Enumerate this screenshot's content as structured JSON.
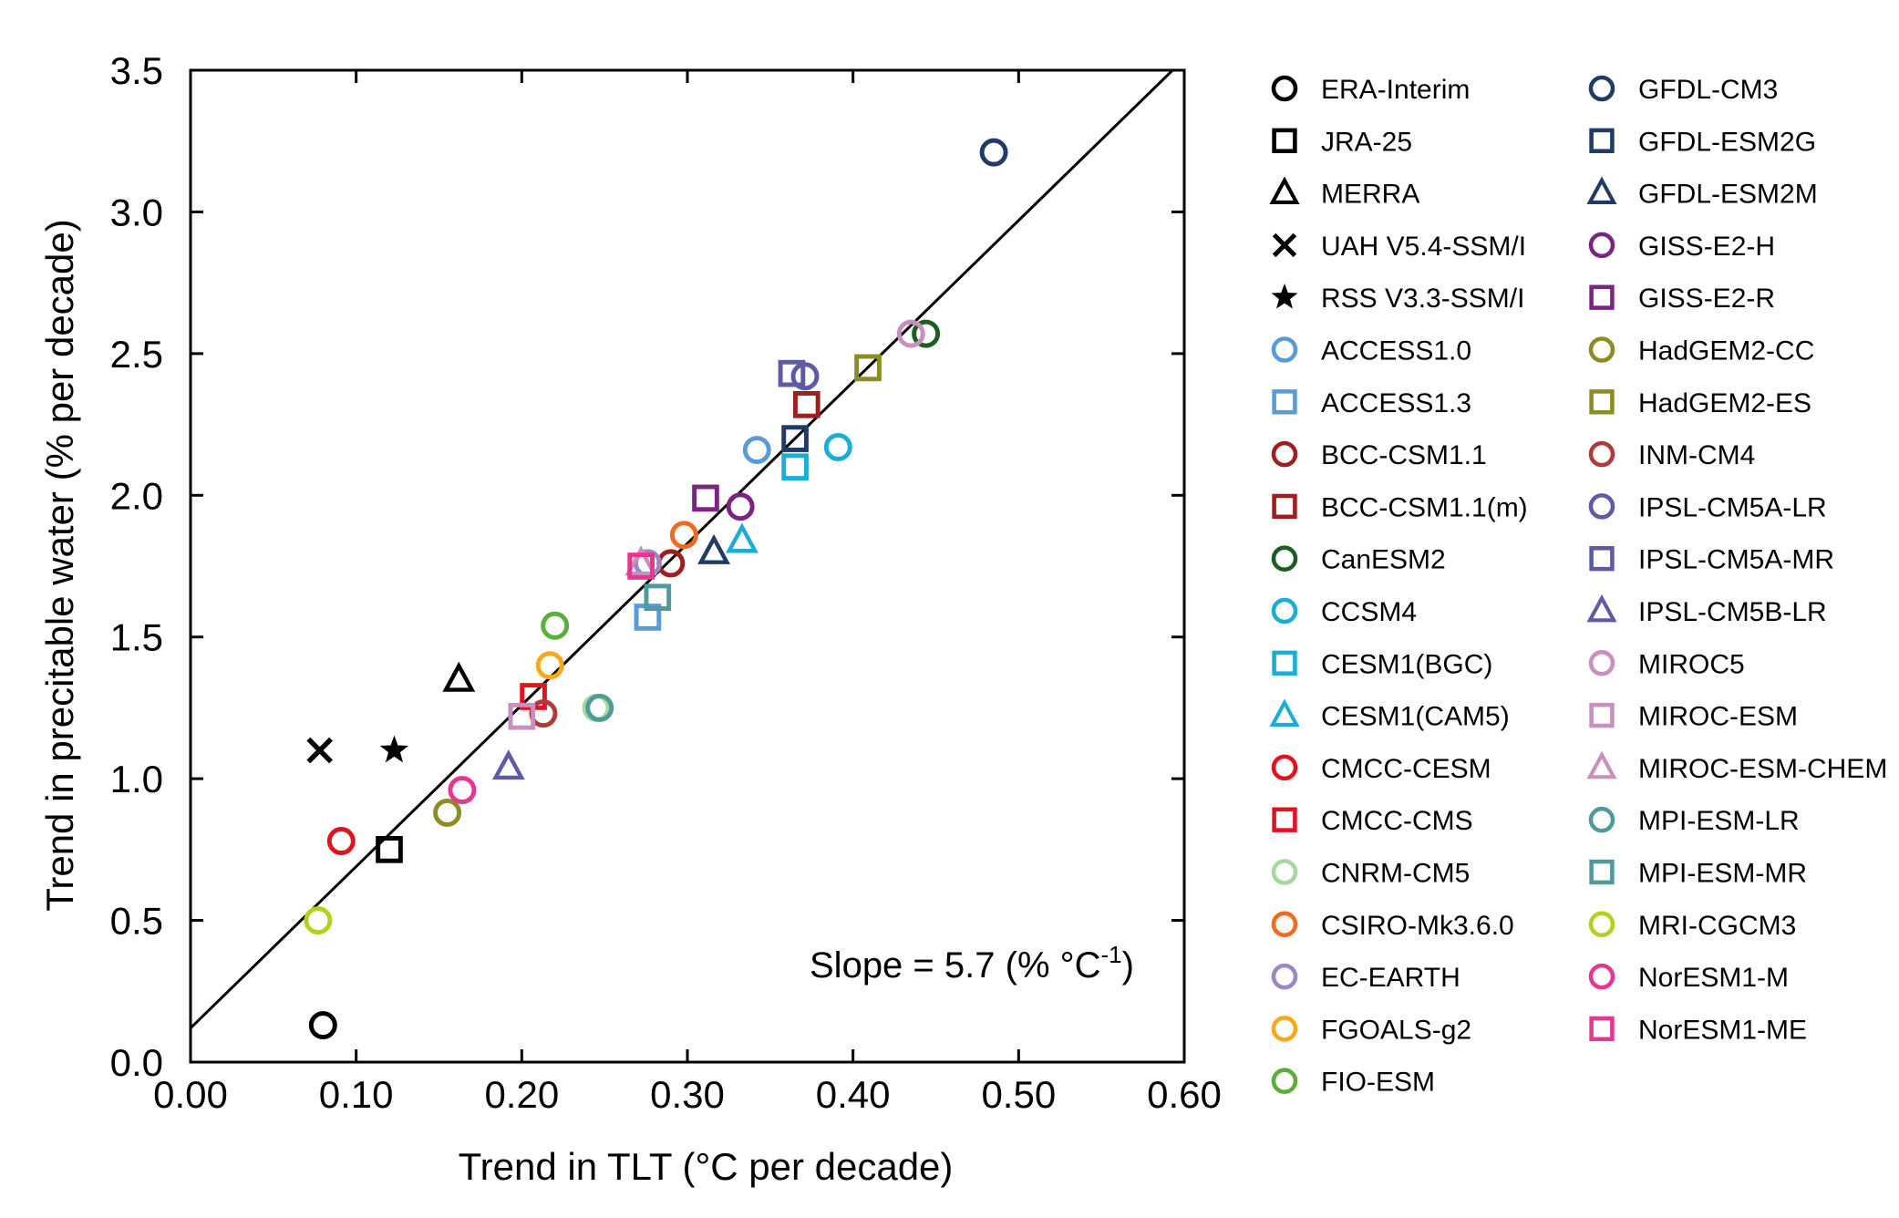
{
  "chart_data": {
    "type": "scatter",
    "xlabel": "Trend in TLT (°C per decade)",
    "ylabel": "Trend in precitable water (% per decade)",
    "xlim": [
      0.0,
      0.6
    ],
    "ylim": [
      0.0,
      3.5
    ],
    "x_ticks": [
      "0.00",
      "0.10",
      "0.20",
      "0.30",
      "0.40",
      "0.50",
      "0.60"
    ],
    "y_ticks": [
      "0.0",
      "0.5",
      "1.0",
      "1.5",
      "2.0",
      "2.5",
      "3.0",
      "3.5"
    ],
    "grid": false,
    "legend_placement": "right",
    "annotation": {
      "prefix": "Slope",
      "text": " = 5.7 (% °C",
      "superscript": "-1",
      "suffix": ")"
    },
    "fit_line": {
      "slope": 5.7,
      "intercept": 0.12
    },
    "series": [
      {
        "name": "ERA-Interim",
        "marker": "circle",
        "color": "#000000",
        "x": 0.08,
        "y": 0.13
      },
      {
        "name": "JRA-25",
        "marker": "square",
        "color": "#000000",
        "x": 0.12,
        "y": 0.75
      },
      {
        "name": "MERRA",
        "marker": "triangle",
        "color": "#000000",
        "x": 0.162,
        "y": 1.35
      },
      {
        "name": "UAH V5.4-SSM/I",
        "marker": "x",
        "color": "#000000",
        "x": 0.078,
        "y": 1.1
      },
      {
        "name": "RSS V3.3-SSM/I",
        "marker": "star",
        "color": "#000000",
        "x": 0.123,
        "y": 1.1
      },
      {
        "name": "ACCESS1.0",
        "marker": "circle",
        "color": "#5b9bd5",
        "x": 0.342,
        "y": 2.16
      },
      {
        "name": "ACCESS1.3",
        "marker": "square",
        "color": "#5b9bd5",
        "x": 0.276,
        "y": 1.57
      },
      {
        "name": "BCC-CSM1.1",
        "marker": "circle",
        "color": "#9e1f1f",
        "x": 0.29,
        "y": 1.76
      },
      {
        "name": "BCC-CSM1.1(m)",
        "marker": "square",
        "color": "#9e1f1f",
        "x": 0.372,
        "y": 2.32
      },
      {
        "name": "CanESM2",
        "marker": "circle",
        "color": "#1b5e20",
        "x": 0.444,
        "y": 2.57
      },
      {
        "name": "CCSM4",
        "marker": "circle",
        "color": "#1aaed6",
        "x": 0.391,
        "y": 2.17
      },
      {
        "name": "CESM1(BGC)",
        "marker": "square",
        "color": "#1aaed6",
        "x": 0.365,
        "y": 2.1
      },
      {
        "name": "CESM1(CAM5)",
        "marker": "triangle",
        "color": "#1aaed6",
        "x": 0.333,
        "y": 1.84
      },
      {
        "name": "CMCC-CESM",
        "marker": "circle",
        "color": "#e3121f",
        "x": 0.091,
        "y": 0.78
      },
      {
        "name": "CMCC-CMS",
        "marker": "square",
        "color": "#e3121f",
        "x": 0.207,
        "y": 1.29
      },
      {
        "name": "CNRM-CM5",
        "marker": "circle",
        "color": "#a5d99b",
        "x": 0.245,
        "y": 1.25
      },
      {
        "name": "CSIRO-Mk3.6.0",
        "marker": "circle",
        "color": "#f06a1f",
        "x": 0.298,
        "y": 1.86
      },
      {
        "name": "EC-EARTH",
        "marker": "circle",
        "color": "#9b86c7",
        "x": 0.276,
        "y": 1.76
      },
      {
        "name": "FGOALS-g2",
        "marker": "circle",
        "color": "#f7a81b",
        "x": 0.217,
        "y": 1.4
      },
      {
        "name": "FIO-ESM",
        "marker": "circle",
        "color": "#5aae3a",
        "x": 0.22,
        "y": 1.54
      },
      {
        "name": "GFDL-CM3",
        "marker": "circle",
        "color": "#1f3b66",
        "x": 0.485,
        "y": 3.21
      },
      {
        "name": "GFDL-ESM2G",
        "marker": "square",
        "color": "#1f3b66",
        "x": 0.365,
        "y": 2.2
      },
      {
        "name": "GFDL-ESM2M",
        "marker": "triangle",
        "color": "#1f3b66",
        "x": 0.316,
        "y": 1.8
      },
      {
        "name": "GISS-E2-H",
        "marker": "circle",
        "color": "#7b2582",
        "x": 0.332,
        "y": 1.96
      },
      {
        "name": "GISS-E2-R",
        "marker": "square",
        "color": "#7b2582",
        "x": 0.311,
        "y": 1.99
      },
      {
        "name": "HadGEM2-CC",
        "marker": "circle",
        "color": "#8c8c20",
        "x": 0.155,
        "y": 0.88
      },
      {
        "name": "HadGEM2-ES",
        "marker": "square",
        "color": "#8c8c20",
        "x": 0.409,
        "y": 2.45
      },
      {
        "name": "INM-CM4",
        "marker": "circle",
        "color": "#b03a3a",
        "x": 0.213,
        "y": 1.23
      },
      {
        "name": "IPSL-CM5A-LR",
        "marker": "circle",
        "color": "#5e5aa6",
        "x": 0.371,
        "y": 2.42
      },
      {
        "name": "IPSL-CM5A-MR",
        "marker": "square",
        "color": "#5e5aa6",
        "x": 0.363,
        "y": 2.43
      },
      {
        "name": "IPSL-CM5B-LR",
        "marker": "triangle",
        "color": "#5e5aa6",
        "x": 0.192,
        "y": 1.04
      },
      {
        "name": "MIROC5",
        "marker": "circle",
        "color": "#c98fbd",
        "x": 0.435,
        "y": 2.57
      },
      {
        "name": "MIROC-ESM",
        "marker": "square",
        "color": "#c98fbd",
        "x": 0.2,
        "y": 1.22
      },
      {
        "name": "MIROC-ESM-CHEM",
        "marker": "triangle",
        "color": "#c98fbd",
        "x": 0.272,
        "y": 1.76
      },
      {
        "name": "MPI-ESM-LR",
        "marker": "circle",
        "color": "#4f9a9a",
        "x": 0.247,
        "y": 1.25
      },
      {
        "name": "MPI-ESM-MR",
        "marker": "square",
        "color": "#4f9a9a",
        "x": 0.282,
        "y": 1.64
      },
      {
        "name": "MRI-CGCM3",
        "marker": "circle",
        "color": "#b5d11e",
        "x": 0.077,
        "y": 0.5
      },
      {
        "name": "NorESM1-M",
        "marker": "circle",
        "color": "#e8358f",
        "x": 0.164,
        "y": 0.96
      },
      {
        "name": "NorESM1-ME",
        "marker": "square",
        "color": "#e8358f",
        "x": 0.272,
        "y": 1.75
      }
    ]
  }
}
